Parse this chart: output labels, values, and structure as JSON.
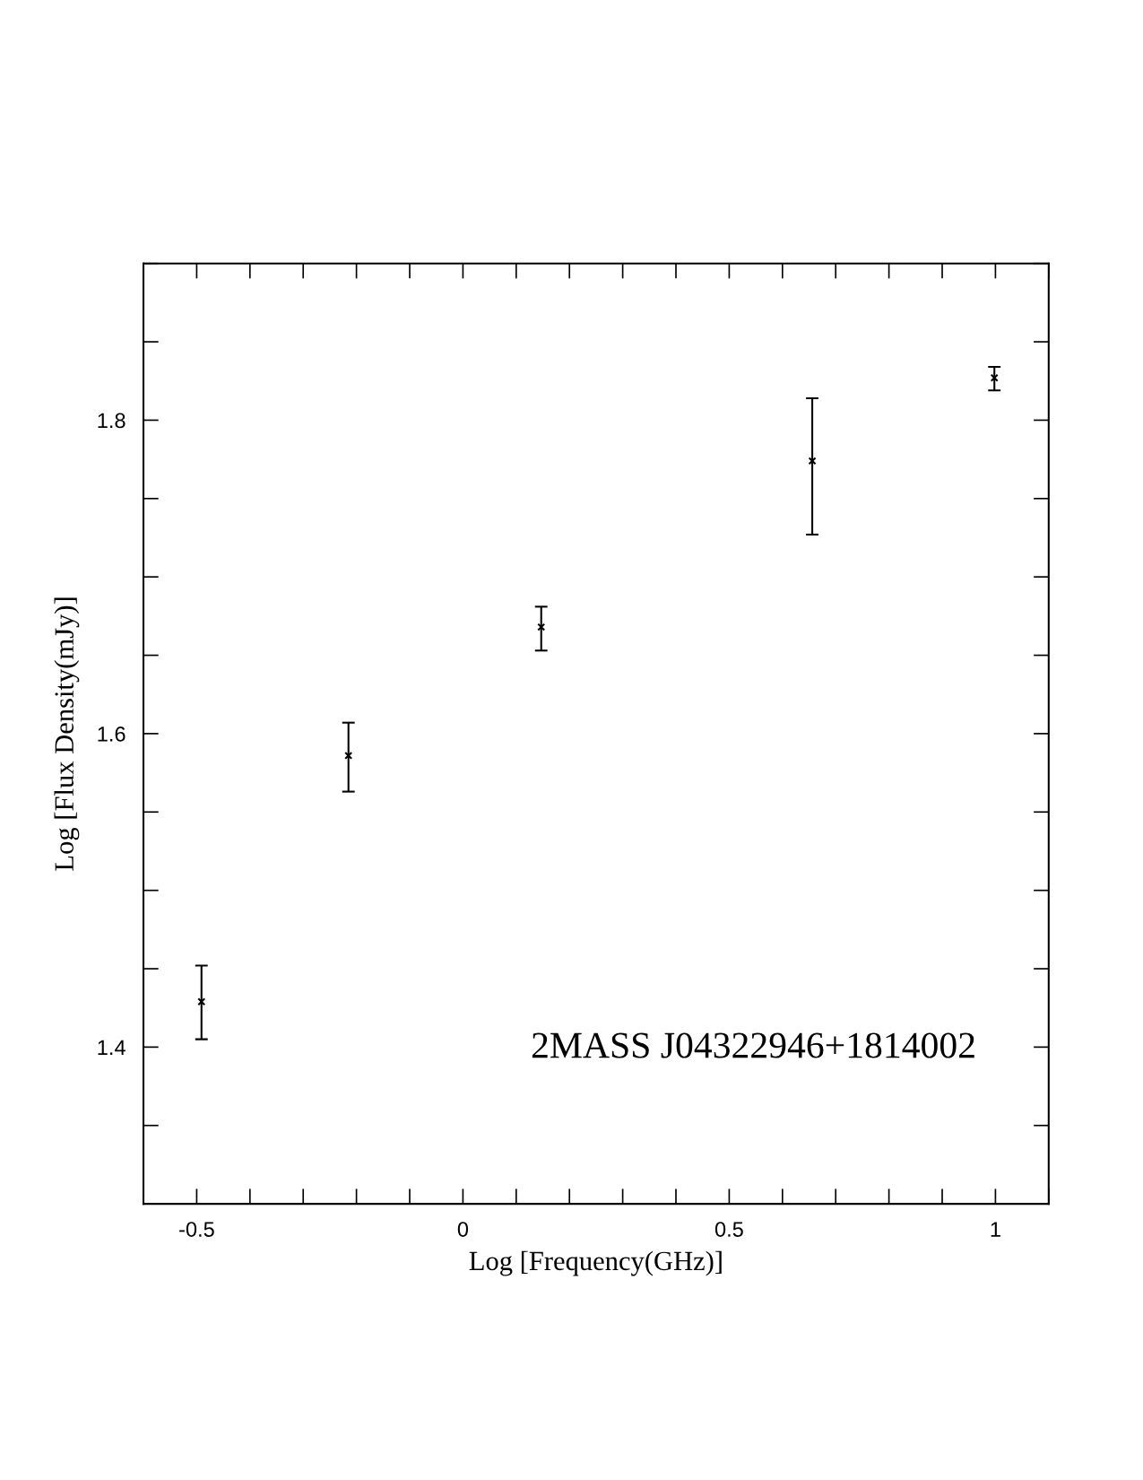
{
  "chart_data": {
    "type": "scatter",
    "xlabel": "Log [Frequency(GHz)]",
    "ylabel": "Log [Flux Density(mJy)]",
    "x": [
      -0.491,
      -0.215,
      0.147,
      0.656,
      0.998
    ],
    "values": [
      1.429,
      1.586,
      1.668,
      1.774,
      1.827
    ],
    "errors": [
      [
        1.405,
        1.452
      ],
      [
        1.563,
        1.607
      ],
      [
        1.653,
        1.681
      ],
      [
        1.727,
        1.814
      ],
      [
        1.819,
        1.834
      ]
    ],
    "color": "#000000",
    "marker": "cross",
    "xlim": [
      -0.6,
      1.1
    ],
    "ylim": [
      1.3,
      1.9
    ],
    "xticks": [
      {
        "value": -0.5,
        "label": "-0.5"
      },
      0,
      0.5,
      1
    ],
    "yticks": [
      1.4,
      1.6,
      1.8
    ],
    "grid": false,
    "legend": false,
    "annotations": [
      "2MASS J04322946+1814002"
    ]
  }
}
